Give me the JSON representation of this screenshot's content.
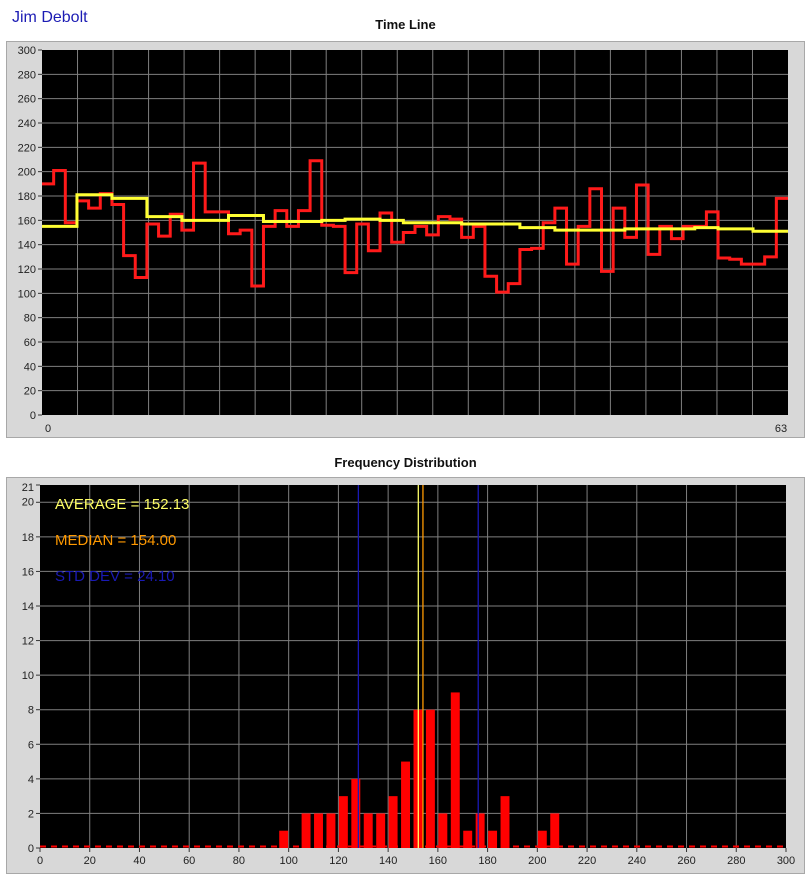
{
  "header": {
    "author": "Jim Debolt"
  },
  "colors": {
    "plot_bg": "#000000",
    "grid": "#7f7f7f",
    "timeline": "#ff1a1a",
    "cumulative_avg": "#ffff33",
    "bars": "#ff0000",
    "average": "#ffff66",
    "median": "#ff9900",
    "std_dev": "#1a1ab4"
  },
  "chart_data": [
    {
      "type": "line",
      "title": "Time Line",
      "xlabel": "",
      "ylabel": "",
      "xlim": [
        0,
        63
      ],
      "ylim": [
        0,
        300
      ],
      "x_tick_labels": [
        "0",
        "63"
      ],
      "y_ticks": [
        0,
        20,
        40,
        60,
        80,
        100,
        120,
        140,
        160,
        180,
        200,
        220,
        240,
        260,
        280,
        300
      ],
      "grid": true,
      "step": true,
      "series": [
        {
          "style": "red step line",
          "values": [
            190,
            201,
            158,
            176,
            170,
            182,
            173,
            131,
            113,
            157,
            147,
            165,
            152,
            207,
            167,
            167,
            149,
            152,
            106,
            155,
            168,
            155,
            168,
            209,
            156,
            155,
            117,
            157,
            135,
            166,
            142,
            150,
            155,
            148,
            163,
            161,
            146,
            155,
            114,
            101,
            108,
            136,
            137,
            158,
            170,
            124,
            155,
            186,
            118,
            170,
            146,
            189,
            132,
            155,
            145,
            155,
            155,
            167,
            129,
            128,
            124,
            124,
            130,
            178
          ]
        },
        {
          "style": "yellow step line",
          "values": [
            155,
            155,
            155,
            181,
            181,
            181,
            178,
            178,
            178,
            163,
            163,
            163,
            160,
            160,
            160,
            160,
            164,
            164,
            164,
            159,
            159,
            159,
            159,
            159,
            160,
            160,
            161,
            161,
            161,
            160,
            160,
            158,
            158,
            158,
            158,
            158,
            157,
            157,
            157,
            157,
            157,
            154,
            154,
            154,
            152,
            152,
            152,
            152,
            152,
            152,
            153,
            153,
            153,
            153,
            153,
            153,
            154,
            154,
            153,
            153,
            153,
            151,
            151,
            151
          ]
        }
      ]
    },
    {
      "type": "bar",
      "title": "Frequency Distribution",
      "xlabel": "",
      "ylabel": "",
      "xlim": [
        0,
        300
      ],
      "ylim": [
        0,
        21
      ],
      "x_ticks": [
        0,
        20,
        40,
        60,
        80,
        100,
        120,
        140,
        160,
        180,
        200,
        220,
        240,
        260,
        280,
        300
      ],
      "y_ticks": [
        0,
        2,
        4,
        6,
        8,
        10,
        12,
        14,
        16,
        18,
        20,
        21
      ],
      "grid": true,
      "bars": [
        {
          "x": 98,
          "value": 1
        },
        {
          "x": 107,
          "value": 2
        },
        {
          "x": 112,
          "value": 2
        },
        {
          "x": 117,
          "value": 2
        },
        {
          "x": 122,
          "value": 3
        },
        {
          "x": 127,
          "value": 4
        },
        {
          "x": 132,
          "value": 2
        },
        {
          "x": 137,
          "value": 2
        },
        {
          "x": 142,
          "value": 3
        },
        {
          "x": 147,
          "value": 5
        },
        {
          "x": 152,
          "value": 8
        },
        {
          "x": 157,
          "value": 8
        },
        {
          "x": 162,
          "value": 2
        },
        {
          "x": 167,
          "value": 9
        },
        {
          "x": 172,
          "value": 1
        },
        {
          "x": 177,
          "value": 2
        },
        {
          "x": 182,
          "value": 1
        },
        {
          "x": 187,
          "value": 3
        },
        {
          "x": 202,
          "value": 1
        },
        {
          "x": 207,
          "value": 2
        }
      ],
      "vertical_lines": [
        {
          "kind": "average",
          "x": 152.13
        },
        {
          "kind": "median",
          "x": 154
        },
        {
          "kind": "std_dev_low",
          "x": 128.03
        },
        {
          "kind": "std_dev_high",
          "x": 176.23
        }
      ],
      "annotations": [
        {
          "kind": "average",
          "text": "AVERAGE = 152.13"
        },
        {
          "kind": "median",
          "text": "MEDIAN = 154.00"
        },
        {
          "kind": "std_dev",
          "text": "STD DEV = 24.10"
        }
      ]
    }
  ]
}
